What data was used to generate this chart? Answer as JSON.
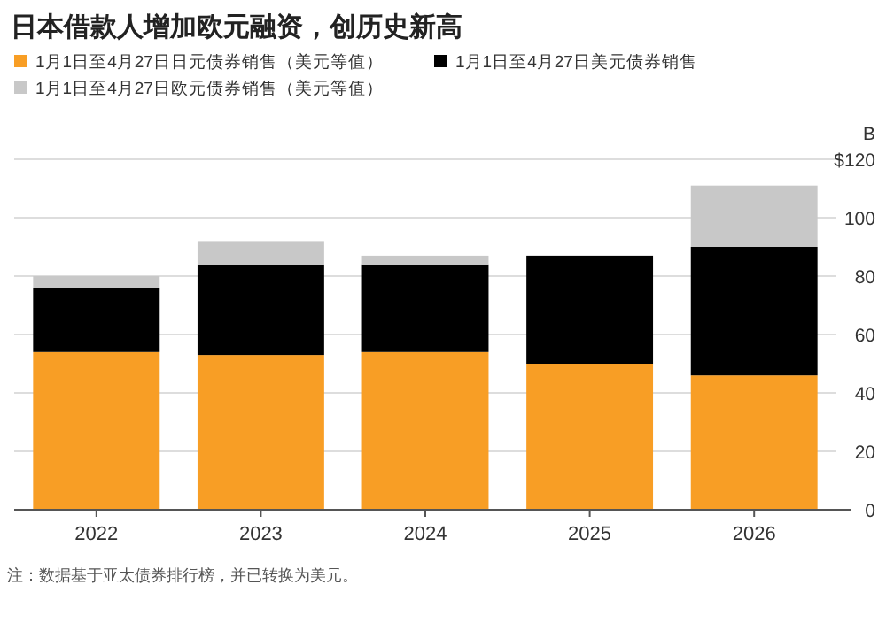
{
  "chart_data": {
    "type": "bar",
    "title": "日本借款人增加欧元融资，创历史新高",
    "categories": [
      "2022",
      "2023",
      "2024",
      "2025",
      "2026"
    ],
    "series": [
      {
        "name": "1月1日至4月27日日元债券销售（美元等值）",
        "color": "#f89e25",
        "values": [
          54,
          53,
          54,
          50,
          46
        ]
      },
      {
        "name": "1月1日至4月27日美元债券销售",
        "color": "#000000",
        "values": [
          22,
          31,
          30,
          37,
          44
        ]
      },
      {
        "name": "1月1日至4月27日欧元债券销售（美元等值）",
        "color": "#c8c8c8",
        "values": [
          4,
          8,
          3,
          0,
          21
        ]
      }
    ],
    "stacked": true,
    "ylim": [
      0,
      120
    ],
    "yticks": [
      0,
      20,
      40,
      60,
      80,
      100,
      {
        "value": 120,
        "label": "$120"
      }
    ],
    "ylabel": "B",
    "grid": "y",
    "legend": "top left",
    "annotations": [
      "注：数据基于亚太债券排行榜，并已转换为美元。"
    ]
  }
}
